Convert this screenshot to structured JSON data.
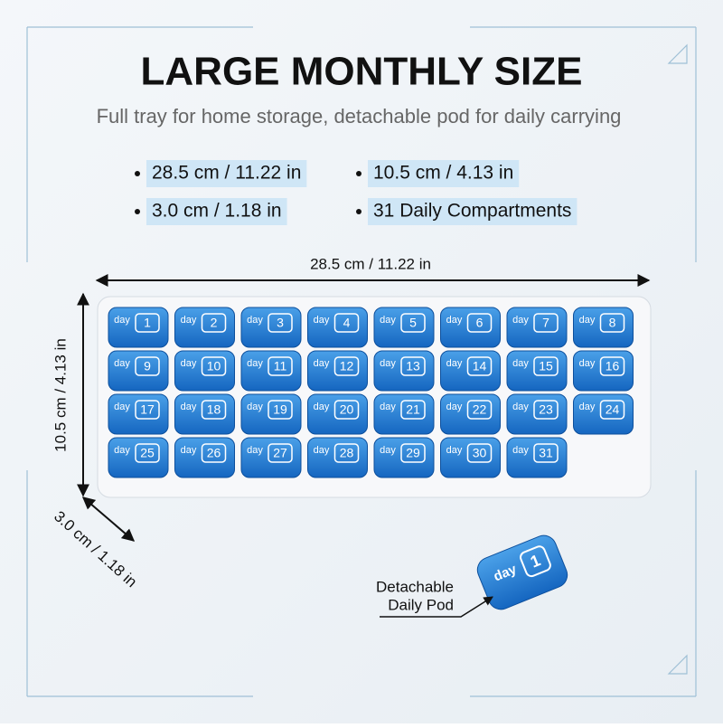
{
  "header": {
    "title": "LARGE MONTHLY SIZE",
    "subtitle": "Full tray for home storage, detachable pod for daily carrying"
  },
  "specs": [
    "28.5 cm / 11.22 in",
    "10.5 cm / 4.13 in",
    "3.0 cm / 1.18 in",
    "31 Daily Compartments"
  ],
  "dimensions": {
    "width": "28.5 cm / 11.22 in",
    "height": "10.5 cm / 4.13 in",
    "depth": "3.0 cm / 1.18 in"
  },
  "tray": {
    "pods": [
      {
        "label": "day",
        "number": 1
      },
      {
        "label": "day",
        "number": 2
      },
      {
        "label": "day",
        "number": 3
      },
      {
        "label": "day",
        "number": 4
      },
      {
        "label": "day",
        "number": 5
      },
      {
        "label": "day",
        "number": 6
      },
      {
        "label": "day",
        "number": 7
      },
      {
        "label": "day",
        "number": 8
      },
      {
        "label": "day",
        "number": 9
      },
      {
        "label": "day",
        "number": 10
      },
      {
        "label": "day",
        "number": 11
      },
      {
        "label": "day",
        "number": 12
      },
      {
        "label": "day",
        "number": 13
      },
      {
        "label": "day",
        "number": 14
      },
      {
        "label": "day",
        "number": 15
      },
      {
        "label": "day",
        "number": 16
      },
      {
        "label": "day",
        "number": 17
      },
      {
        "label": "day",
        "number": 18
      },
      {
        "label": "day",
        "number": 19
      },
      {
        "label": "day",
        "number": 20
      },
      {
        "label": "day",
        "number": 21
      },
      {
        "label": "day",
        "number": 22
      },
      {
        "label": "day",
        "number": 23
      },
      {
        "label": "day",
        "number": 24
      },
      {
        "label": "day",
        "number": 25
      },
      {
        "label": "day",
        "number": 26
      },
      {
        "label": "day",
        "number": 27
      },
      {
        "label": "day",
        "number": 28
      },
      {
        "label": "day",
        "number": 29
      },
      {
        "label": "day",
        "number": 30
      },
      {
        "label": "day",
        "number": 31
      }
    ]
  },
  "detached_pod": {
    "label": "day",
    "number": 1,
    "callout": [
      "Detachable",
      "Daily Pod"
    ]
  }
}
